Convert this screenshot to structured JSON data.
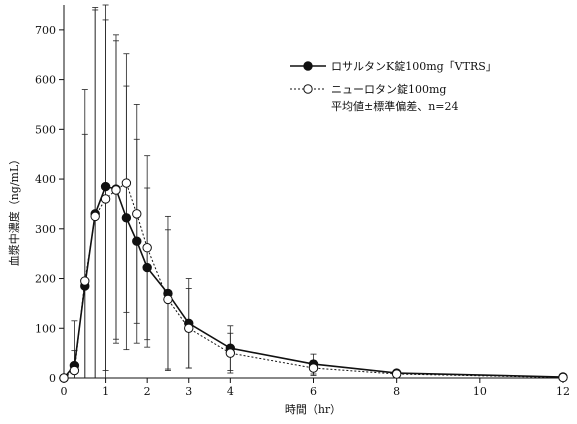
{
  "chart_data": {
    "type": "line",
    "xlabel": "時間（hr）",
    "ylabel": "血漿中濃度（ng/mL）",
    "xlim": [
      0,
      12
    ],
    "ylim": [
      0,
      750
    ],
    "x_ticks": [
      0,
      1,
      2,
      3,
      4,
      6,
      8,
      10,
      12
    ],
    "y_ticks": [
      0,
      100,
      200,
      300,
      400,
      500,
      600,
      700
    ],
    "legend_position": "upper-right",
    "legend_note": "平均値±標準偏差、n=24",
    "series": [
      {
        "name": "ロサルタンK錠100mg「VTRS」",
        "marker": "filled-circle",
        "line": "solid",
        "x": [
          0,
          0.25,
          0.5,
          0.75,
          1,
          1.25,
          1.5,
          1.75,
          2,
          2.5,
          3,
          4,
          6,
          8,
          12
        ],
        "y": [
          0,
          25,
          185,
          330,
          385,
          380,
          322,
          275,
          222,
          170,
          110,
          60,
          28,
          10,
          2
        ],
        "sd": [
          0,
          90,
          395,
          410,
          370,
          310,
          265,
          205,
          160,
          155,
          90,
          45,
          20,
          5,
          2
        ]
      },
      {
        "name": "ニューロタン錠100mg",
        "marker": "open-circle",
        "line": "dotted",
        "x": [
          0,
          0.25,
          0.5,
          0.75,
          1,
          1.25,
          1.5,
          1.75,
          2,
          2.5,
          3,
          4,
          6,
          8,
          12
        ],
        "y": [
          0,
          15,
          195,
          325,
          360,
          378,
          392,
          330,
          262,
          158,
          100,
          50,
          20,
          8,
          1
        ],
        "sd": [
          0,
          40,
          295,
          420,
          360,
          300,
          260,
          220,
          185,
          140,
          80,
          40,
          15,
          4,
          1
        ]
      }
    ]
  }
}
